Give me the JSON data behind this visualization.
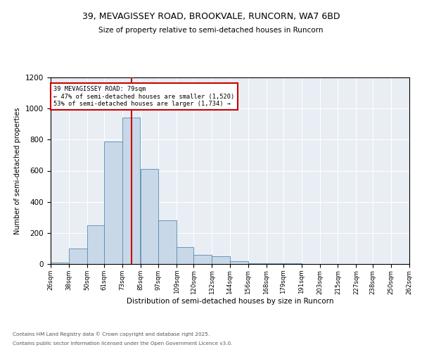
{
  "title_line1": "39, MEVAGISSEY ROAD, BROOKVALE, RUNCORN, WA7 6BD",
  "title_line2": "Size of property relative to semi-detached houses in Runcorn",
  "xlabel": "Distribution of semi-detached houses by size in Runcorn",
  "ylabel": "Number of semi-detached properties",
  "annotation_title": "39 MEVAGISSEY ROAD: 79sqm",
  "annotation_left": "← 47% of semi-detached houses are smaller (1,520)",
  "annotation_right": "53% of semi-detached houses are larger (1,734) →",
  "footer_line1": "Contains HM Land Registry data © Crown copyright and database right 2025.",
  "footer_line2": "Contains public sector information licensed under the Open Government Licence v3.0.",
  "bin_labels": [
    "26sqm",
    "38sqm",
    "50sqm",
    "61sqm",
    "73sqm",
    "85sqm",
    "97sqm",
    "109sqm",
    "120sqm",
    "132sqm",
    "144sqm",
    "156sqm",
    "168sqm",
    "179sqm",
    "191sqm",
    "203sqm",
    "215sqm",
    "227sqm",
    "238sqm",
    "250sqm",
    "262sqm"
  ],
  "bin_edges": [
    26,
    38,
    50,
    61,
    73,
    85,
    97,
    109,
    120,
    132,
    144,
    156,
    168,
    179,
    191,
    203,
    215,
    227,
    238,
    250,
    262
  ],
  "bar_values": [
    10,
    100,
    250,
    790,
    940,
    610,
    280,
    110,
    60,
    50,
    20,
    5,
    5,
    3,
    2,
    0,
    0,
    0,
    0,
    0
  ],
  "bar_color": "#c8d8e8",
  "bar_edge_color": "#5a8ab0",
  "vline_x": 79,
  "vline_color": "#cc0000",
  "annotation_box_color": "#cc0000",
  "background_color": "#e8eef4",
  "ylim": [
    0,
    1200
  ],
  "yticks": [
    0,
    200,
    400,
    600,
    800,
    1000,
    1200
  ]
}
